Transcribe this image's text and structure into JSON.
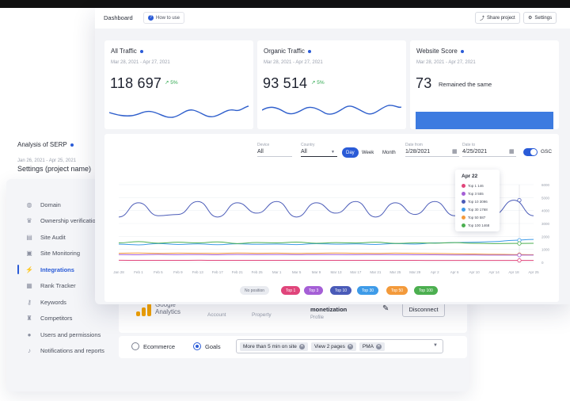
{
  "settings": {
    "title": "Settings (project name)",
    "menu": [
      {
        "label": "Domain",
        "icon": "globe-icon",
        "glyph": "◍"
      },
      {
        "label": "Ownership verification",
        "icon": "crown-icon",
        "glyph": "♛"
      },
      {
        "label": "Site Audit",
        "icon": "audit-icon",
        "glyph": "▤"
      },
      {
        "label": "Site Monitoring",
        "icon": "monitor-icon",
        "glyph": "▣"
      },
      {
        "label": "Integrations",
        "icon": "plug-icon",
        "glyph": "⚡"
      },
      {
        "label": "Rank Tracker",
        "icon": "tracker-icon",
        "glyph": "▦"
      },
      {
        "label": "Keywords",
        "icon": "key-icon",
        "glyph": "⚷"
      },
      {
        "label": "Competitors",
        "icon": "trophy-icon",
        "glyph": "♜"
      },
      {
        "label": "Users and permissions",
        "icon": "user-icon",
        "glyph": "●"
      },
      {
        "label": "Notifications and reports",
        "icon": "bell-icon",
        "glyph": "♪"
      }
    ],
    "ga": {
      "name": "Google Analytics",
      "account_label": "Account",
      "property_label": "Property",
      "view_value": "monetization",
      "view_label": "Profile",
      "disconnect": "Disconnect"
    },
    "goals": {
      "ecommerce": "Ecommerce",
      "goals": "Goals",
      "chips": [
        "More than 5 min on site",
        "View 2 pages",
        "PMA"
      ]
    }
  },
  "dashboard": {
    "title": "Dashboard",
    "how_to": "How to use",
    "share": "Share project",
    "settings_btn": "Settings",
    "kpis": [
      {
        "title": "All Traffic",
        "date": "Mar 28, 2021 - Apr 27, 2021",
        "value": "118 697",
        "change": "5%"
      },
      {
        "title": "Organic Traffic",
        "date": "Mar 28, 2021 - Apr 27, 2021",
        "value": "93 514",
        "change": "5%"
      },
      {
        "title": "Website Score",
        "date": "Mar 28, 2021 - Apr 27, 2021",
        "value": "73",
        "note": "Remained the same"
      }
    ],
    "serp": {
      "title": "Analysis of SERP",
      "date": "Jan 26, 2021 - Apr 25, 2021",
      "device_label": "Device",
      "device_value": "All",
      "country_label": "Country",
      "country_value": "All",
      "periods": [
        "Day",
        "Week",
        "Month"
      ],
      "active_period": "Day",
      "date_from_label": "Date from",
      "date_from": "1/28/2021",
      "date_to_label": "Date to",
      "date_to": "4/25/2021",
      "gsc": "GSC"
    },
    "tooltip": {
      "title": "Apr 22",
      "rows": [
        {
          "label": "Top 1 146",
          "color": "#e0457b"
        },
        {
          "label": "Top 3 555",
          "color": "#a55fd6"
        },
        {
          "label": "Top 10 3096",
          "color": "#4a5bb8"
        },
        {
          "label": "Top 30 1768",
          "color": "#3e9be8"
        },
        {
          "label": "Top 50 587",
          "color": "#f39a3b"
        },
        {
          "label": "Top 100 1468",
          "color": "#4caf50"
        }
      ]
    },
    "legend": [
      {
        "label": "No position",
        "color": "#e9ebf0",
        "text": "#6a6f7e"
      },
      {
        "label": "Top 1",
        "color": "#e0457b",
        "text": "#ffffff"
      },
      {
        "label": "Top 3",
        "color": "#a55fd6",
        "text": "#ffffff"
      },
      {
        "label": "Top 10",
        "color": "#4a5bb8",
        "text": "#ffffff"
      },
      {
        "label": "Top 30",
        "color": "#3e9be8",
        "text": "#ffffff"
      },
      {
        "label": "Top 50",
        "color": "#f39a3b",
        "text": "#ffffff"
      },
      {
        "label": "Top 100",
        "color": "#4caf50",
        "text": "#ffffff"
      }
    ]
  },
  "chart_data": {
    "type": "line",
    "x": [
      "Jan 28",
      "Feb 1",
      "Feb 5",
      "Feb 9",
      "Feb 13",
      "Feb 17",
      "Feb 21",
      "Feb 25",
      "Mar 1",
      "Mar 5",
      "Mar 9",
      "Mar 13",
      "Mar 17",
      "Mar 21",
      "Mar 25",
      "Mar 29",
      "Apr 2",
      "Apr 6",
      "Apr 10",
      "Apr 14",
      "Apr 18",
      "Apr 25"
    ],
    "y_ticks": [
      "6000",
      "5000",
      "4000",
      "3000",
      "2000",
      "1000",
      "0"
    ],
    "ylim": [
      0,
      6000
    ],
    "series": [
      {
        "name": "Top 10",
        "color": "#4a5bb8",
        "values": [
          3500,
          4600,
          3600,
          3700,
          4700,
          3500,
          4600,
          3800,
          4700,
          3500,
          4600,
          3800,
          4700,
          3500,
          4600,
          3700,
          4700,
          3600,
          4600,
          3700,
          4800,
          3600
        ]
      },
      {
        "name": "Top 30",
        "color": "#3e9be8",
        "values": [
          1400,
          1350,
          1450,
          1380,
          1420,
          1360,
          1430,
          1390,
          1410,
          1370,
          1440,
          1400,
          1420,
          1380,
          1450,
          1410,
          1500,
          1520,
          1550,
          1600,
          1700,
          1768
        ]
      },
      {
        "name": "Top 100",
        "color": "#4caf50",
        "values": [
          1500,
          1600,
          1480,
          1550,
          1500,
          1580,
          1450,
          1530,
          1500,
          1560,
          1470,
          1520,
          1490,
          1550,
          1460,
          1500,
          1480,
          1520,
          1470,
          1450,
          1460,
          1468
        ]
      },
      {
        "name": "Top 50",
        "color": "#f39a3b",
        "values": [
          700,
          720,
          690,
          710,
          700,
          690,
          720,
          700,
          710,
          690,
          700,
          720,
          700,
          690,
          710,
          700,
          680,
          660,
          640,
          620,
          600,
          587
        ]
      },
      {
        "name": "Top 3",
        "color": "#a55fd6",
        "values": [
          600,
          580,
          610,
          590,
          600,
          585,
          605,
          595,
          600,
          590,
          600,
          595,
          590,
          600,
          590,
          585,
          580,
          570,
          565,
          560,
          558,
          555
        ]
      },
      {
        "name": "Top 1",
        "color": "#e0457b",
        "values": [
          160,
          150,
          155,
          150,
          160,
          150,
          155,
          150,
          150,
          155,
          150,
          150,
          155,
          150,
          150,
          150,
          148,
          146,
          147,
          146,
          146,
          146
        ]
      }
    ],
    "grid": true
  }
}
